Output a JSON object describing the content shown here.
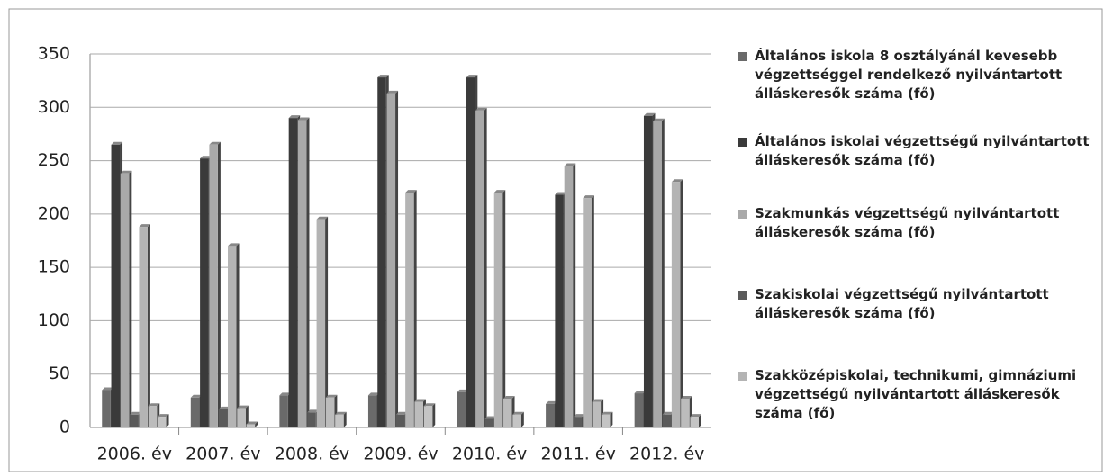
{
  "chart_data": {
    "type": "bar",
    "categories": [
      "2006. év",
      "2007. év",
      "2008. év",
      "2009. év",
      "2010. év",
      "2011. év",
      "2012. év"
    ],
    "series": [
      {
        "name": "Általános iskola 8 osztályánál kevesebb végzettséggel rendelkező nyilvántartott álláskeresők száma (fő)",
        "color": "#6a6a6a",
        "values": [
          35,
          28,
          30,
          30,
          33,
          22,
          32
        ]
      },
      {
        "name": "Általános iskolai végzettségű nyilvántartott álláskeresők száma (fő)",
        "color": "#3a3a3a",
        "values": [
          265,
          252,
          290,
          328,
          328,
          218,
          292
        ]
      },
      {
        "name": "Szakmunkás végzettségű nyilvántartott álláskeresők száma (fő)",
        "color": "#a9a9a9",
        "values": [
          238,
          265,
          288,
          313,
          297,
          245,
          287
        ]
      },
      {
        "name": "Szakiskolai végzettségű nyilvántartott álláskeresők száma (fő)",
        "color": "#5a5a5a",
        "values": [
          12,
          17,
          14,
          12,
          8,
          10,
          12
        ]
      },
      {
        "name": "Szakközépiskolai, technikumi, gimnáziumi végzettségű nyilvántartott álláskeresők száma (fő)",
        "color": "#b4b4b4",
        "values": [
          188,
          170,
          195,
          220,
          220,
          215,
          230
        ]
      },
      {
        "color": "#bcbcbc",
        "values": [
          20,
          18,
          28,
          24,
          27,
          24,
          27
        ]
      },
      {
        "color": "#c4c4c4",
        "values": [
          10,
          3,
          12,
          20,
          12,
          12,
          10
        ]
      }
    ],
    "ylim": [
      0,
      350
    ],
    "yticks": [
      0,
      50,
      100,
      150,
      200,
      250,
      300,
      350
    ],
    "grid": true
  }
}
